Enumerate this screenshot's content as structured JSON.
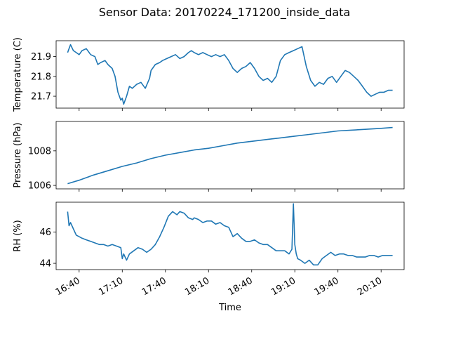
{
  "figure": {
    "title": "Sensor Data: 20170224_171200_inside_data",
    "xlabel": "Time",
    "line_color": "#1f77b4"
  },
  "chart_data": [
    {
      "type": "line",
      "ylabel": "Temperature (C)",
      "xlim": [
        "16:24",
        "20:26"
      ],
      "ylim": [
        21.64,
        21.98
      ],
      "yticks": [
        21.7,
        21.8,
        21.9
      ],
      "ytick_labels": [
        "21.7",
        "21.8",
        "21.9"
      ],
      "grid": false,
      "series": [
        {
          "x": [
            "16:32",
            "16:33",
            "16:34",
            "16:36",
            "16:38",
            "16:40",
            "16:42",
            "16:45",
            "16:48",
            "16:51",
            "16:53",
            "16:55",
            "16:58",
            "17:00",
            "17:03",
            "17:05",
            "17:07",
            "17:09",
            "17:10",
            "17:11",
            "17:13",
            "17:15",
            "17:17",
            "17:20",
            "17:23",
            "17:26",
            "17:29",
            "17:30",
            "17:33",
            "17:36",
            "17:38",
            "17:41",
            "17:44",
            "17:47",
            "17:50",
            "17:53",
            "17:56",
            "17:58",
            "18:00",
            "18:03",
            "18:06",
            "18:09",
            "18:12",
            "18:15",
            "18:18",
            "18:21",
            "18:24",
            "18:27",
            "18:30",
            "18:33",
            "18:36",
            "18:39",
            "18:42",
            "18:45",
            "18:48",
            "18:51",
            "18:54",
            "18:57",
            "19:00",
            "19:03",
            "19:06",
            "19:09",
            "19:12",
            "19:15",
            "19:18",
            "19:21",
            "19:24",
            "19:27",
            "19:30",
            "19:33",
            "19:36",
            "19:39",
            "19:42",
            "19:45",
            "19:48",
            "19:51",
            "19:54",
            "19:57",
            "20:00",
            "20:03",
            "20:06",
            "20:09",
            "20:12",
            "20:15",
            "20:18"
          ],
          "y": [
            21.92,
            21.94,
            21.96,
            21.93,
            21.92,
            21.91,
            21.93,
            21.94,
            21.91,
            21.9,
            21.86,
            21.87,
            21.88,
            21.86,
            21.84,
            21.8,
            21.72,
            21.68,
            21.69,
            21.66,
            21.7,
            21.75,
            21.74,
            21.76,
            21.77,
            21.74,
            21.79,
            21.83,
            21.86,
            21.87,
            21.88,
            21.89,
            21.9,
            21.91,
            21.89,
            21.9,
            21.92,
            21.93,
            21.92,
            21.91,
            21.92,
            21.91,
            21.9,
            21.91,
            21.9,
            21.91,
            21.88,
            21.84,
            21.82,
            21.84,
            21.85,
            21.87,
            21.84,
            21.8,
            21.78,
            21.79,
            21.77,
            21.8,
            21.88,
            21.91,
            21.92,
            21.93,
            21.94,
            21.95,
            21.85,
            21.78,
            21.75,
            21.77,
            21.76,
            21.79,
            21.8,
            21.77,
            21.8,
            21.83,
            21.82,
            21.8,
            21.78,
            21.75,
            21.72,
            21.7,
            21.71,
            21.72,
            21.72,
            21.73,
            21.73
          ]
        }
      ]
    },
    {
      "type": "line",
      "ylabel": "Pressure (hPa)",
      "xlim": [
        "16:24",
        "20:26"
      ],
      "ylim": [
        1005.8,
        1009.7
      ],
      "yticks": [
        1006,
        1008
      ],
      "ytick_labels": [
        "1006",
        "1008"
      ],
      "grid": false,
      "series": [
        {
          "x": [
            "16:32",
            "16:40",
            "16:50",
            "17:00",
            "17:10",
            "17:20",
            "17:30",
            "17:40",
            "17:50",
            "18:00",
            "18:10",
            "18:20",
            "18:30",
            "18:40",
            "18:50",
            "19:00",
            "19:10",
            "19:20",
            "19:30",
            "19:40",
            "19:50",
            "20:00",
            "20:10",
            "20:18"
          ],
          "y": [
            1006.1,
            1006.3,
            1006.6,
            1006.85,
            1007.1,
            1007.3,
            1007.55,
            1007.75,
            1007.9,
            1008.05,
            1008.15,
            1008.3,
            1008.45,
            1008.55,
            1008.65,
            1008.75,
            1008.85,
            1008.95,
            1009.05,
            1009.15,
            1009.2,
            1009.25,
            1009.3,
            1009.35
          ]
        }
      ]
    },
    {
      "type": "line",
      "ylabel": "RH (%)",
      "xlim": [
        "16:24",
        "20:26"
      ],
      "ylim": [
        43.6,
        47.9
      ],
      "yticks": [
        44,
        46
      ],
      "ytick_labels": [
        "44",
        "46"
      ],
      "grid": false,
      "xticks": [
        "16:40",
        "17:10",
        "17:40",
        "18:10",
        "18:40",
        "19:10",
        "19:40",
        "20:10"
      ],
      "xtick_labels": [
        "16:40",
        "17:10",
        "17:40",
        "18:10",
        "18:40",
        "19:10",
        "19:40",
        "20:10"
      ],
      "series": [
        {
          "x": [
            "16:32",
            "16:33",
            "16:34",
            "16:36",
            "16:38",
            "16:40",
            "16:42",
            "16:45",
            "16:48",
            "16:51",
            "16:54",
            "16:57",
            "17:00",
            "17:03",
            "17:06",
            "17:09",
            "17:10",
            "17:11",
            "17:13",
            "17:15",
            "17:18",
            "17:21",
            "17:24",
            "17:27",
            "17:30",
            "17:33",
            "17:36",
            "17:39",
            "17:42",
            "17:45",
            "17:48",
            "17:50",
            "17:53",
            "17:56",
            "17:59",
            "18:00",
            "18:03",
            "18:06",
            "18:09",
            "18:12",
            "18:15",
            "18:18",
            "18:21",
            "18:24",
            "18:27",
            "18:30",
            "18:33",
            "18:36",
            "18:39",
            "18:42",
            "18:45",
            "18:48",
            "18:51",
            "18:54",
            "18:57",
            "19:00",
            "19:03",
            "19:06",
            "19:08",
            "19:09",
            "19:10",
            "19:11",
            "19:12",
            "19:14",
            "19:17",
            "19:20",
            "19:23",
            "19:26",
            "19:29",
            "19:32",
            "19:35",
            "19:38",
            "19:41",
            "19:44",
            "19:47",
            "19:50",
            "19:53",
            "19:56",
            "19:59",
            "20:02",
            "20:05",
            "20:08",
            "20:11",
            "20:14",
            "20:18"
          ],
          "y": [
            47.3,
            46.4,
            46.6,
            46.2,
            45.8,
            45.7,
            45.6,
            45.5,
            45.4,
            45.3,
            45.2,
            45.2,
            45.1,
            45.2,
            45.1,
            45.0,
            44.3,
            44.6,
            44.2,
            44.6,
            44.8,
            45.0,
            44.9,
            44.7,
            44.9,
            45.2,
            45.7,
            46.3,
            47.0,
            47.3,
            47.1,
            47.3,
            47.2,
            46.9,
            46.8,
            46.9,
            46.8,
            46.6,
            46.7,
            46.7,
            46.5,
            46.6,
            46.4,
            46.3,
            45.7,
            45.9,
            45.6,
            45.4,
            45.4,
            45.5,
            45.3,
            45.2,
            45.2,
            45.0,
            44.8,
            44.8,
            44.8,
            44.6,
            44.9,
            47.8,
            45.2,
            44.6,
            44.3,
            44.2,
            44.0,
            44.2,
            43.9,
            43.9,
            44.3,
            44.5,
            44.7,
            44.5,
            44.6,
            44.6,
            44.5,
            44.5,
            44.4,
            44.4,
            44.4,
            44.5,
            44.5,
            44.4,
            44.5,
            44.5,
            44.5
          ]
        }
      ]
    }
  ]
}
